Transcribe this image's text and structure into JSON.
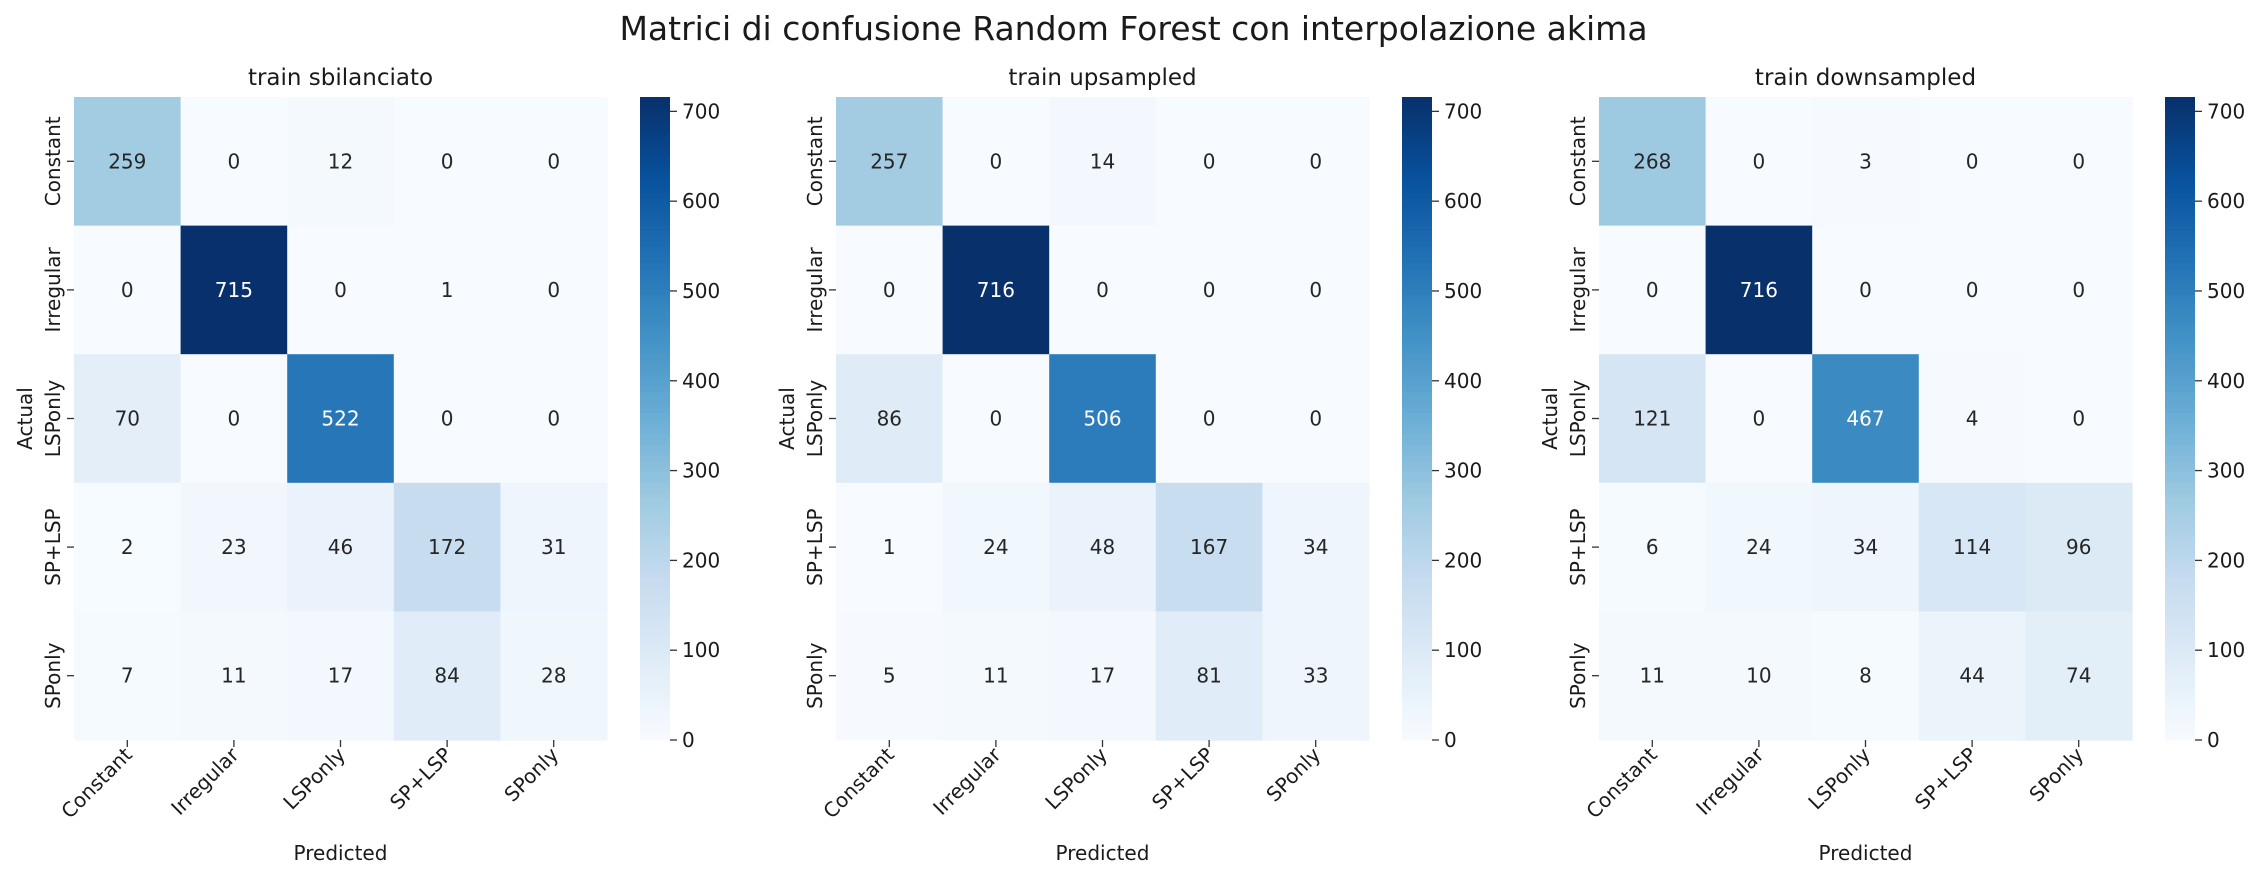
{
  "figure": {
    "title": "Matrici di confusione Random Forest con interpolazione akima",
    "colormap": [
      "#f7fbff",
      "#deebf7",
      "#c6dbef",
      "#9ecae1",
      "#6baed6",
      "#4292c6",
      "#2171b5",
      "#08519c",
      "#08306b"
    ]
  },
  "chart_data": [
    {
      "type": "heatmap",
      "title": "train sbilanciato",
      "xlabel": "Predicted",
      "ylabel": "Actual",
      "x_categories": [
        "Constant",
        "Irregular",
        "LSPonly",
        "SP+LSP",
        "SPonly"
      ],
      "y_categories": [
        "Constant",
        "Irregular",
        "LSPonly",
        "SP+LSP",
        "SPonly"
      ],
      "values": [
        [
          259,
          0,
          12,
          0,
          0
        ],
        [
          0,
          715,
          0,
          1,
          0
        ],
        [
          70,
          0,
          522,
          0,
          0
        ],
        [
          2,
          23,
          46,
          172,
          31
        ],
        [
          7,
          11,
          17,
          84,
          28
        ]
      ],
      "vmin": 0,
      "vmax": 716,
      "colorbar_ticks": [
        0,
        100,
        200,
        300,
        400,
        500,
        600,
        700
      ]
    },
    {
      "type": "heatmap",
      "title": "train upsampled",
      "xlabel": "Predicted",
      "ylabel": "Actual",
      "x_categories": [
        "Constant",
        "Irregular",
        "LSPonly",
        "SP+LSP",
        "SPonly"
      ],
      "y_categories": [
        "Constant",
        "Irregular",
        "LSPonly",
        "SP+LSP",
        "SPonly"
      ],
      "values": [
        [
          257,
          0,
          14,
          0,
          0
        ],
        [
          0,
          716,
          0,
          0,
          0
        ],
        [
          86,
          0,
          506,
          0,
          0
        ],
        [
          1,
          24,
          48,
          167,
          34
        ],
        [
          5,
          11,
          17,
          81,
          33
        ]
      ],
      "vmin": 0,
      "vmax": 716,
      "colorbar_ticks": [
        0,
        100,
        200,
        300,
        400,
        500,
        600,
        700
      ]
    },
    {
      "type": "heatmap",
      "title": "train downsampled",
      "xlabel": "Predicted",
      "ylabel": "Actual",
      "x_categories": [
        "Constant",
        "Irregular",
        "LSPonly",
        "SP+LSP",
        "SPonly"
      ],
      "y_categories": [
        "Constant",
        "Irregular",
        "LSPonly",
        "SP+LSP",
        "SPonly"
      ],
      "values": [
        [
          268,
          0,
          3,
          0,
          0
        ],
        [
          0,
          716,
          0,
          0,
          0
        ],
        [
          121,
          0,
          467,
          4,
          0
        ],
        [
          6,
          24,
          34,
          114,
          96
        ],
        [
          11,
          10,
          8,
          44,
          74
        ]
      ],
      "vmin": 0,
      "vmax": 716,
      "colorbar_ticks": [
        0,
        100,
        200,
        300,
        400,
        500,
        600,
        700
      ]
    }
  ]
}
